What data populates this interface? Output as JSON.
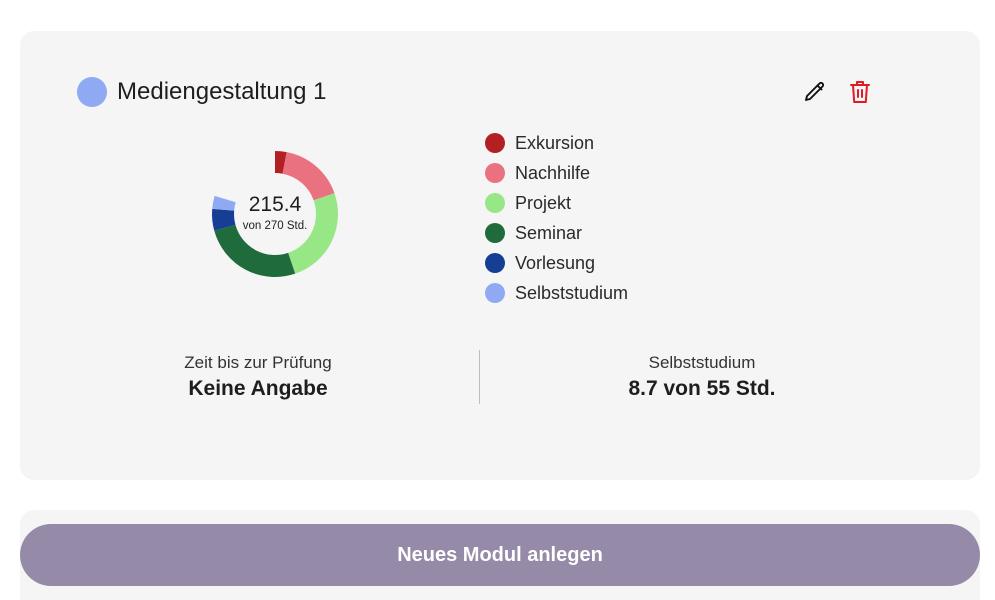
{
  "module": {
    "title": "Mediengestaltung 1",
    "color": "#8faaf3",
    "edit_icon": "pencil-icon",
    "delete_icon": "trash-icon",
    "delete_color": "#e01b24"
  },
  "donut": {
    "value_text": "215.4",
    "sub_text": "von 270 Std.",
    "total": 270,
    "segments": [
      {
        "category": "Exkursion",
        "value": 8,
        "color": "#b32024"
      },
      {
        "category": "Nachhilfe",
        "value": 45,
        "color": "#ea7180"
      },
      {
        "category": "Projekt",
        "value": 68,
        "color": "#97e787"
      },
      {
        "category": "Seminar",
        "value": 70,
        "color": "#1f6b3c"
      },
      {
        "category": "Vorlesung",
        "value": 15,
        "color": "#163e95"
      },
      {
        "category": "Selbststudium",
        "value": 9,
        "color": "#8faaf3"
      }
    ]
  },
  "legend": [
    {
      "label": "Exkursion",
      "color": "#b32024"
    },
    {
      "label": "Nachhilfe",
      "color": "#ea7180"
    },
    {
      "label": "Projekt",
      "color": "#97e787"
    },
    {
      "label": "Seminar",
      "color": "#1f6b3c"
    },
    {
      "label": "Vorlesung",
      "color": "#163e95"
    },
    {
      "label": "Selbststudium",
      "color": "#8faaf3"
    }
  ],
  "stats": {
    "exam": {
      "label": "Zeit bis zur Prüfung",
      "value": "Keine Angabe"
    },
    "self_study": {
      "label": "Selbststudium",
      "value": "8.7 von 55 Std."
    }
  },
  "new_module_button": {
    "label": "Neues Modul anlegen",
    "color": "#968aa9"
  }
}
